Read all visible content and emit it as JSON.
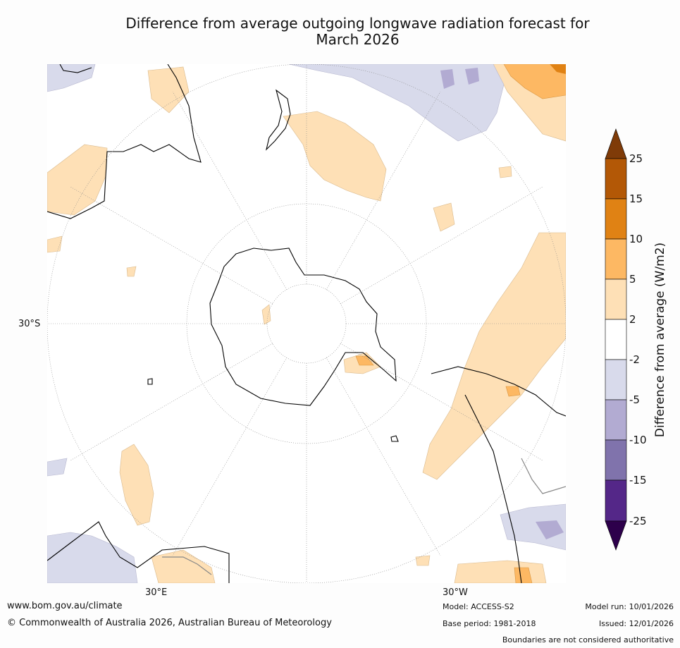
{
  "title_line1": "Difference from average outgoing longwave radiation forecast for",
  "title_line2": "March 2026",
  "graticule_labels": {
    "lat": "30°S",
    "lon_east": "30°E",
    "lon_west": "30°W"
  },
  "colorbar": {
    "label": "Difference from average (W/m2)",
    "ticks": [
      "25",
      "15",
      "10",
      "5",
      "2",
      "-2",
      "-5",
      "-10",
      "-15",
      "-25"
    ],
    "colors": {
      "over": "#7f3b08",
      "15_25": "#b35806",
      "10_15": "#e08214",
      "5_10": "#fdb863",
      "2_5": "#fee0b6",
      "-2_2": "#ffffff",
      "-5_-2": "#d8daeb",
      "-10_-5": "#b2abd2",
      "-15_-10": "#8073ac",
      "-25_-15": "#542788",
      "under": "#2d004b"
    }
  },
  "footer": {
    "website": "www.bom.gov.au/climate",
    "copyright": "© Commonwealth of Australia 2026, Australian Bureau of Meteorology",
    "model": "Model: ACCESS-S2",
    "base_period": "Base period: 1981-2018",
    "model_run": "Model run: 10/01/2026",
    "issued": "Issued: 12/01/2026",
    "boundaries": "Boundaries are not considered authoritative"
  }
}
